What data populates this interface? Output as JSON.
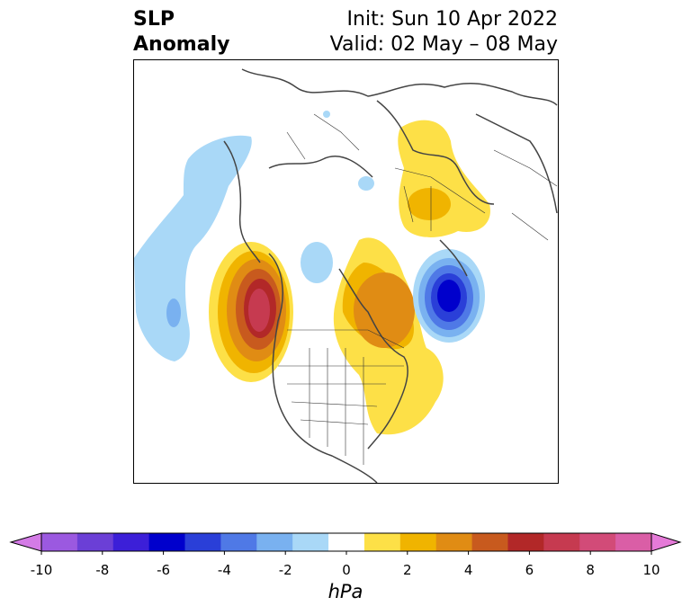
{
  "title": {
    "line1": "SLP",
    "line2": "Anomaly",
    "init": "Init: Sun 10 Apr 2022",
    "valid": "Valid: 02 May – 08 May"
  },
  "colorbar": {
    "units": "hPa",
    "ticks": [
      "-10",
      "-8",
      "-6",
      "-4",
      "-2",
      "0",
      "2",
      "4",
      "6",
      "8",
      "10"
    ],
    "colors": [
      "#d47be6",
      "#9b59e0",
      "#6b3fd6",
      "#3c1fd8",
      "#0000cc",
      "#2a3fd8",
      "#4f79e6",
      "#79b1f0",
      "#a9d8f7",
      "#ffffff",
      "#fde047",
      "#f0b400",
      "#e08c14",
      "#c85a1e",
      "#b22828",
      "#c63a50",
      "#d24b78",
      "#da5ea6",
      "#e57ad8"
    ]
  },
  "map": {
    "projection": "polar stereographic, North America / Arctic",
    "features": [
      "coastlines",
      "country borders",
      "US state borders"
    ]
  }
}
